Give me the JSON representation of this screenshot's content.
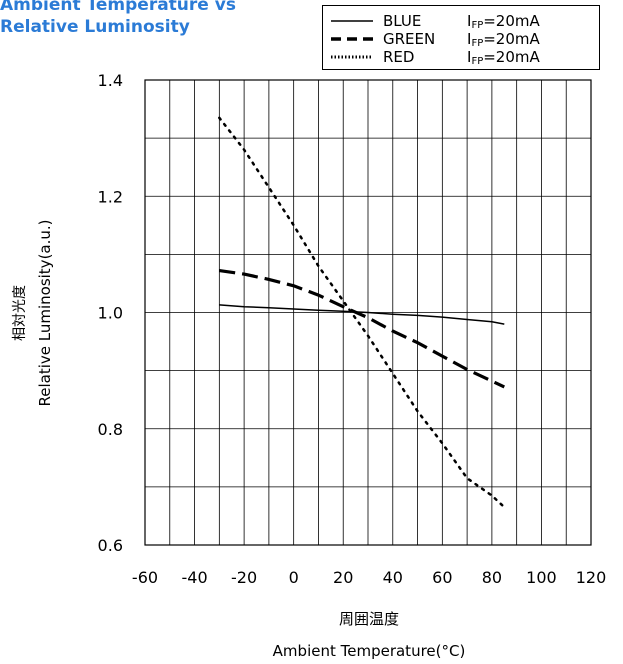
{
  "chart_data": {
    "type": "line",
    "title_lines": [
      "Ambient Temperature vs",
      "Relative Luminosity"
    ],
    "xlabel_cn": "周囲温度",
    "xlabel": "Ambient Temperature(°C)",
    "ylabel_cn": "相対光度",
    "ylabel": "Relative Luminosity(a.u.)",
    "xlim": [
      -60,
      120
    ],
    "ylim": [
      0.6,
      1.4
    ],
    "xticks": [
      -60,
      -40,
      -20,
      0,
      20,
      40,
      60,
      80,
      100,
      120
    ],
    "yticks": [
      0.6,
      0.8,
      1.0,
      1.2,
      1.4
    ],
    "ytick_labels": [
      "0.6",
      "0.8",
      "1.0",
      "1.2",
      "1.4"
    ],
    "grid": true,
    "legend_position": "top-right",
    "series": [
      {
        "name": "BLUE",
        "condition_main": "I",
        "condition_sub": "FP",
        "condition_value": "=20mA",
        "style": "solid",
        "x": [
          -30,
          -20,
          -10,
          0,
          10,
          20,
          30,
          40,
          50,
          60,
          70,
          80,
          85
        ],
        "y": [
          1.013,
          1.01,
          1.008,
          1.006,
          1.004,
          1.002,
          1.0,
          0.997,
          0.995,
          0.992,
          0.988,
          0.984,
          0.98
        ]
      },
      {
        "name": "GREEN",
        "condition_main": "I",
        "condition_sub": "FP",
        "condition_value": "=20mA",
        "style": "dashed",
        "x": [
          -30,
          -20,
          -10,
          0,
          10,
          20,
          30,
          40,
          50,
          60,
          70,
          80,
          85
        ],
        "y": [
          1.072,
          1.066,
          1.057,
          1.046,
          1.03,
          1.01,
          0.991,
          0.968,
          0.948,
          0.925,
          0.902,
          0.882,
          0.872
        ]
      },
      {
        "name": "RED",
        "condition_main": "I",
        "condition_sub": "FP",
        "condition_value": "=20mA",
        "style": "dotted",
        "x": [
          -30,
          -20,
          -10,
          0,
          10,
          20,
          30,
          40,
          50,
          60,
          70,
          80,
          85
        ],
        "y": [
          1.335,
          1.28,
          1.215,
          1.15,
          1.08,
          1.02,
          0.96,
          0.895,
          0.83,
          0.775,
          0.715,
          0.685,
          0.665
        ]
      }
    ]
  }
}
